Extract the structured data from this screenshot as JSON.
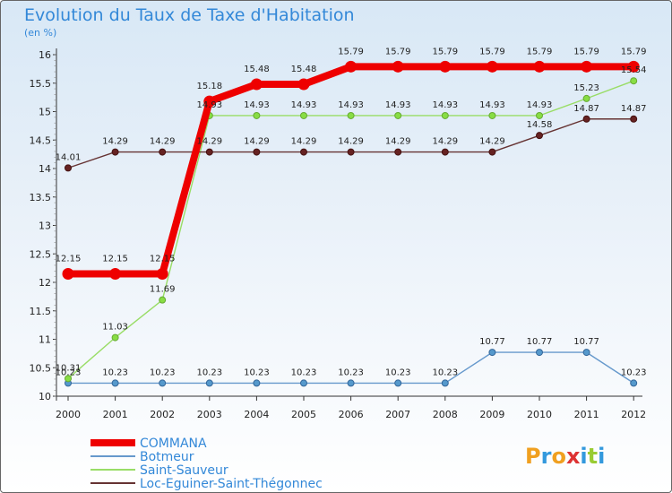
{
  "chart_data": {
    "type": "line",
    "title": "Evolution du Taux de Taxe d'Habitation",
    "ylabel": "(en %)",
    "xlabel": "",
    "ylim": [
      10,
      16
    ],
    "yticks": [
      "10",
      "10.5",
      "11",
      "11.5",
      "12",
      "12.5",
      "13",
      "13.5",
      "14",
      "14.5",
      "15",
      "15.5",
      "16"
    ],
    "x": [
      "2000",
      "2001",
      "2002",
      "2003",
      "2004",
      "2005",
      "2006",
      "2007",
      "2008",
      "2009",
      "2010",
      "2011",
      "2012"
    ],
    "grid": false,
    "legend_position": "bottom-left",
    "series": [
      {
        "name": "COMMANA",
        "color": "#ee0000",
        "values": [
          12.15,
          12.15,
          12.15,
          15.18,
          15.48,
          15.48,
          15.79,
          15.79,
          15.79,
          15.79,
          15.79,
          15.79,
          15.79
        ]
      },
      {
        "name": "Botmeur",
        "color": "#6699cc",
        "values": [
          10.23,
          10.23,
          10.23,
          10.23,
          10.23,
          10.23,
          10.23,
          10.23,
          10.23,
          10.77,
          10.77,
          10.77,
          10.23
        ]
      },
      {
        "name": "Saint-Sauveur",
        "color": "#99dd66",
        "values": [
          10.31,
          11.03,
          11.69,
          14.93,
          14.93,
          14.93,
          14.93,
          14.93,
          14.93,
          14.93,
          14.93,
          15.23,
          15.54
        ]
      },
      {
        "name": "Loc-Eguiner-Saint-Thégonnec",
        "color": "#663333",
        "values": [
          14.01,
          14.29,
          14.29,
          14.29,
          14.29,
          14.29,
          14.29,
          14.29,
          14.29,
          14.29,
          14.58,
          14.87,
          14.87
        ]
      }
    ]
  },
  "logo": {
    "letters": [
      "P",
      "r",
      "o",
      "x",
      "i",
      "t",
      "i"
    ],
    "colors": [
      "#f0a020",
      "#3399dd",
      "#f0a020",
      "#dd3333",
      "#3399dd",
      "#99cc33",
      "#3399dd"
    ]
  }
}
